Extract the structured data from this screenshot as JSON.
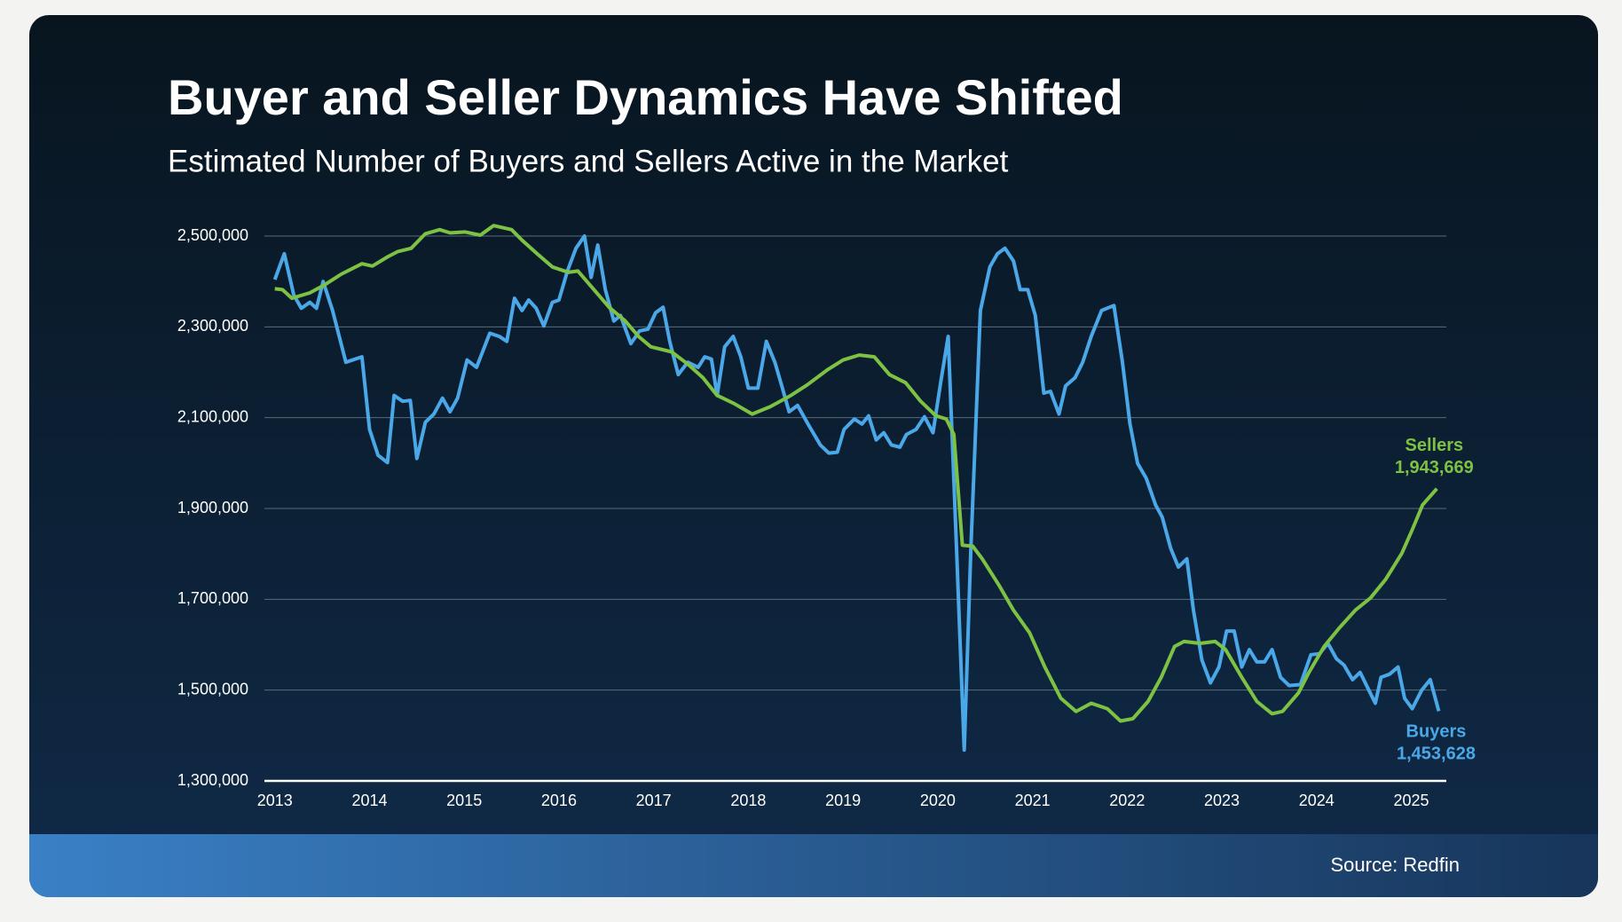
{
  "chart_data": {
    "type": "line",
    "title": "Buyer and Seller Dynamics Have Shifted",
    "subtitle": "Estimated Number of Buyers and Sellers Active in the Market",
    "source": "Source: Redfin",
    "xlim": [
      2012.89,
      2025.37
    ],
    "xticks": [
      2013,
      2014,
      2015,
      2016,
      2017,
      2018,
      2019,
      2020,
      2021,
      2022,
      2023,
      2024,
      2025
    ],
    "ylim": [
      1300000,
      2500000
    ],
    "yticks": [
      {
        "value": 1300000,
        "label": "1,300,000"
      },
      {
        "value": 1500000,
        "label": "1,500,000"
      },
      {
        "value": 1700000,
        "label": "1,700,000"
      },
      {
        "value": 1900000,
        "label": "1,900,000"
      },
      {
        "value": 2100000,
        "label": "2,100,000"
      },
      {
        "value": 2300000,
        "label": "2,300,000"
      },
      {
        "value": 2500000,
        "label": "2,500,000"
      }
    ],
    "grid": true,
    "series": [
      {
        "name": "Buyers",
        "color": "#4aa8e8",
        "x": [
          2013.0,
          2013.1,
          2013.2,
          2013.28,
          2013.37,
          2013.44,
          2013.51,
          2013.61,
          2013.75,
          2013.92,
          2014.0,
          2014.09,
          2014.19,
          2014.26,
          2014.35,
          2014.43,
          2014.5,
          2014.59,
          2014.68,
          2014.77,
          2014.85,
          2014.93,
          2015.03,
          2015.13,
          2015.27,
          2015.37,
          2015.45,
          2015.53,
          2015.61,
          2015.68,
          2015.76,
          2015.84,
          2015.93,
          2016.0,
          2016.09,
          2016.18,
          2016.27,
          2016.34,
          2016.41,
          2016.49,
          2016.58,
          2016.65,
          2016.76,
          2016.85,
          2016.94,
          2017.02,
          2017.1,
          2017.17,
          2017.26,
          2017.36,
          2017.47,
          2017.54,
          2017.61,
          2017.67,
          2017.75,
          2017.84,
          2017.92,
          2018.0,
          2018.1,
          2018.19,
          2018.28,
          2018.36,
          2018.43,
          2018.52,
          2018.63,
          2018.76,
          2018.85,
          2018.94,
          2019.01,
          2019.12,
          2019.2,
          2019.27,
          2019.35,
          2019.43,
          2019.51,
          2019.6,
          2019.67,
          2019.77,
          2019.86,
          2019.95,
          2020.03,
          2020.11,
          2020.19,
          2020.28,
          2020.35,
          2020.45,
          2020.55,
          2020.63,
          2020.71,
          2020.8,
          2020.87,
          2020.95,
          2021.03,
          2021.12,
          2021.19,
          2021.28,
          2021.35,
          2021.45,
          2021.53,
          2021.62,
          2021.73,
          2021.86,
          2021.95,
          2022.03,
          2022.11,
          2022.2,
          2022.3,
          2022.37,
          2022.46,
          2022.54,
          2022.63,
          2022.7,
          2022.79,
          2022.88,
          2022.97,
          2023.05,
          2023.13,
          2023.21,
          2023.29,
          2023.37,
          2023.45,
          2023.53,
          2023.62,
          2023.71,
          2023.83,
          2023.94,
          2024.03,
          2024.12,
          2024.21,
          2024.29,
          2024.38,
          2024.46,
          2024.54,
          2024.62,
          2024.68,
          2024.77,
          2024.86,
          2024.93,
          2025.01,
          2025.11,
          2025.2,
          2025.29
        ],
        "values": [
          2404000,
          2461000,
          2370000,
          2341000,
          2354000,
          2341000,
          2400000,
          2336000,
          2222000,
          2234000,
          2074000,
          2017000,
          2001000,
          2149000,
          2136000,
          2138000,
          2010000,
          2090000,
          2108000,
          2143000,
          2113000,
          2143000,
          2227000,
          2211000,
          2286000,
          2279000,
          2268000,
          2363000,
          2336000,
          2359000,
          2341000,
          2302000,
          2354000,
          2359000,
          2423000,
          2473000,
          2500000,
          2409000,
          2480000,
          2382000,
          2313000,
          2325000,
          2263000,
          2291000,
          2295000,
          2331000,
          2343000,
          2268000,
          2195000,
          2222000,
          2211000,
          2234000,
          2229000,
          2149000,
          2256000,
          2279000,
          2234000,
          2165000,
          2165000,
          2268000,
          2222000,
          2165000,
          2113000,
          2127000,
          2086000,
          2040000,
          2022000,
          2024000,
          2074000,
          2097000,
          2086000,
          2104000,
          2051000,
          2067000,
          2040000,
          2035000,
          2063000,
          2074000,
          2102000,
          2067000,
          2177000,
          2279000,
          1858000,
          1368000,
          1813000,
          2336000,
          2432000,
          2461000,
          2473000,
          2445000,
          2382000,
          2382000,
          2325000,
          2154000,
          2158000,
          2108000,
          2170000,
          2188000,
          2222000,
          2279000,
          2336000,
          2347000,
          2222000,
          2086000,
          1999000,
          1967000,
          1908000,
          1881000,
          1812000,
          1771000,
          1789000,
          1676000,
          1566000,
          1516000,
          1551000,
          1630000,
          1630000,
          1551000,
          1589000,
          1562000,
          1562000,
          1589000,
          1528000,
          1510000,
          1512000,
          1578000,
          1580000,
          1603000,
          1569000,
          1555000,
          1523000,
          1539000,
          1505000,
          1471000,
          1528000,
          1535000,
          1551000,
          1482000,
          1459000,
          1500000,
          1523000,
          1453628
        ]
      },
      {
        "name": "Sellers",
        "color": "#7dc242",
        "x": [
          2013.0,
          2013.08,
          2013.18,
          2013.37,
          2013.53,
          2013.7,
          2013.92,
          2014.03,
          2014.19,
          2014.3,
          2014.44,
          2014.59,
          2014.74,
          2014.85,
          2015.01,
          2015.17,
          2015.31,
          2015.5,
          2015.61,
          2015.77,
          2015.93,
          2016.1,
          2016.2,
          2016.37,
          2016.53,
          2016.7,
          2016.84,
          2016.97,
          2017.19,
          2017.36,
          2017.52,
          2017.67,
          2017.85,
          2018.04,
          2018.23,
          2018.45,
          2018.62,
          2018.84,
          2019.0,
          2019.17,
          2019.33,
          2019.49,
          2019.66,
          2019.82,
          2019.98,
          2020.09,
          2020.17,
          2020.26,
          2020.37,
          2020.47,
          2020.64,
          2020.8,
          2020.97,
          2021.13,
          2021.3,
          2021.46,
          2021.62,
          2021.79,
          2021.93,
          2022.06,
          2022.22,
          2022.36,
          2022.5,
          2022.6,
          2022.77,
          2022.93,
          2023.04,
          2023.21,
          2023.37,
          2023.53,
          2023.64,
          2023.81,
          2023.92,
          2024.08,
          2024.24,
          2024.41,
          2024.57,
          2024.73,
          2024.9,
          2025.01,
          2025.12,
          2025.27
        ],
        "values": [
          2384000,
          2382000,
          2363000,
          2375000,
          2393000,
          2416000,
          2439000,
          2434000,
          2454000,
          2466000,
          2473000,
          2505000,
          2514000,
          2507000,
          2509000,
          2502000,
          2523000,
          2514000,
          2491000,
          2461000,
          2432000,
          2420000,
          2423000,
          2382000,
          2343000,
          2313000,
          2279000,
          2256000,
          2245000,
          2218000,
          2188000,
          2149000,
          2131000,
          2108000,
          2124000,
          2149000,
          2172000,
          2206000,
          2227000,
          2238000,
          2234000,
          2195000,
          2177000,
          2136000,
          2104000,
          2097000,
          2063000,
          1819000,
          1817000,
          1789000,
          1733000,
          1676000,
          1626000,
          1551000,
          1482000,
          1453000,
          1471000,
          1459000,
          1432000,
          1437000,
          1475000,
          1528000,
          1596000,
          1607000,
          1603000,
          1607000,
          1589000,
          1528000,
          1475000,
          1448000,
          1453000,
          1494000,
          1539000,
          1596000,
          1637000,
          1676000,
          1703000,
          1744000,
          1801000,
          1853000,
          1908000,
          1943669
        ]
      }
    ],
    "annotations": [
      {
        "series": "Sellers",
        "lines": [
          "Sellers",
          "1,943,669"
        ]
      },
      {
        "series": "Buyers",
        "lines": [
          "Buyers",
          "1,453,628"
        ]
      }
    ]
  }
}
